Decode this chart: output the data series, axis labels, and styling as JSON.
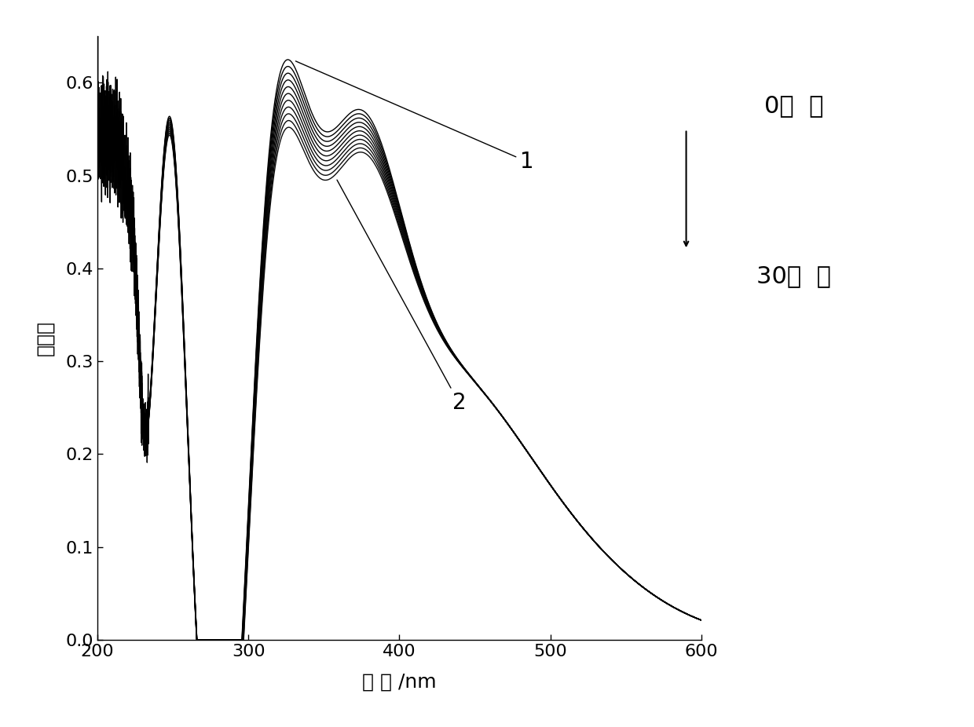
{
  "xlabel": "波 长 /nm",
  "ylabel": "吸光度",
  "xlim": [
    200,
    600
  ],
  "ylim": [
    0.0,
    0.65
  ],
  "yticks": [
    0.0,
    0.1,
    0.2,
    0.3,
    0.4,
    0.5,
    0.6
  ],
  "xticks": [
    200,
    300,
    400,
    500,
    600
  ],
  "n_curves": 11,
  "annotation_top": "0分  钟",
  "annotation_bottom": "30分  钟",
  "background_color": "#ffffff",
  "xlabel_fontsize": 18,
  "ylabel_fontsize": 18,
  "tick_fontsize": 16,
  "annotation_fontsize": 22,
  "label_fontsize": 20
}
